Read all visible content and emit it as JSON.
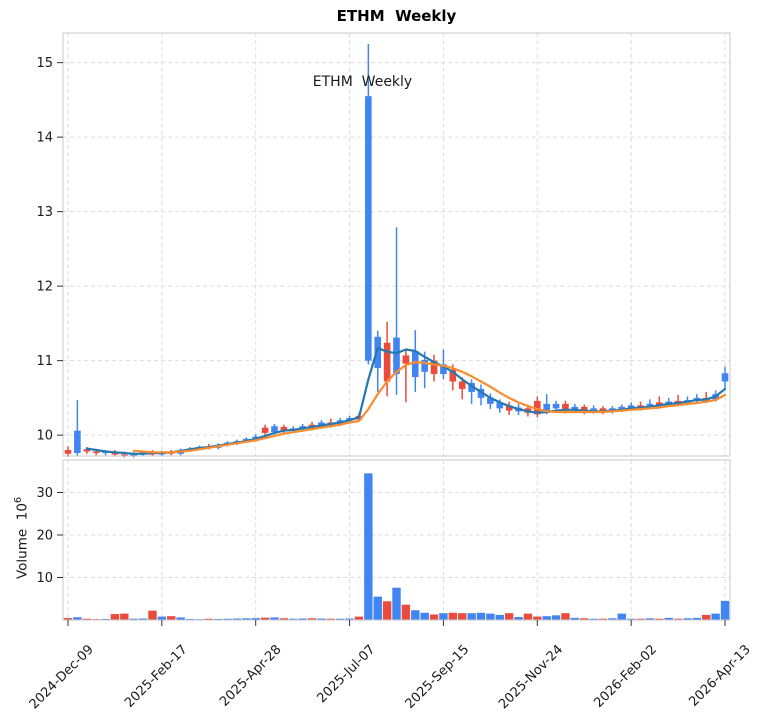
{
  "title": "ETHM  Weekly",
  "annotation": "ETHM  Weekly",
  "volume_axis_label": {
    "text": "Volume",
    "base": "10",
    "exponent": "6"
  },
  "colors": {
    "up_candle": "#4185f2",
    "down_candle": "#eb4b3d",
    "ma_fast": "#2479b0",
    "ma_slow": "#fb8c2d",
    "grid": "#dcdcdc",
    "spine": "#c9c9c9",
    "tick_text": "#1a1a1a"
  },
  "chart_data": {
    "type": "candlestick_with_volume",
    "title": "ETHM  Weekly",
    "x_tick_labels": [
      "2024-Dec-09",
      "2025-Feb-17",
      "2025-Apr-28",
      "2025-Jul-07",
      "2025-Sep-15",
      "2025-Nov-24",
      "2026-Feb-02",
      "2026-Apr-13"
    ],
    "x_tick_weeks": [
      0,
      10,
      20,
      30,
      40,
      50,
      60,
      70
    ],
    "price_ticks": [
      10,
      11,
      12,
      13,
      14,
      15
    ],
    "price_ylim": [
      9.72,
      15.4
    ],
    "volume_ticks": [
      10,
      20,
      30
    ],
    "volume_ylim": [
      0,
      37.6
    ],
    "volume_unit": "10^6",
    "grid": "dashed",
    "weeks_ohlcv": [
      [
        9.8,
        9.85,
        9.71,
        9.75,
        0.45
      ],
      [
        9.76,
        10.47,
        9.72,
        10.06,
        0.65
      ],
      [
        9.81,
        9.84,
        9.75,
        9.78,
        0.3
      ],
      [
        9.78,
        9.81,
        9.73,
        9.76,
        0.2
      ],
      [
        9.76,
        9.8,
        9.73,
        9.78,
        0.25
      ],
      [
        9.78,
        9.8,
        9.71,
        9.74,
        1.4
      ],
      [
        9.74,
        9.78,
        9.7,
        9.72,
        1.5
      ],
      [
        9.72,
        9.77,
        9.7,
        9.75,
        0.3
      ],
      [
        9.75,
        9.79,
        9.72,
        9.77,
        0.35
      ],
      [
        9.77,
        9.8,
        9.72,
        9.74,
        2.2
      ],
      [
        9.74,
        9.79,
        9.72,
        9.77,
        0.8
      ],
      [
        9.77,
        9.8,
        9.73,
        9.75,
        0.9
      ],
      [
        9.75,
        9.82,
        9.73,
        9.8,
        0.6
      ],
      [
        9.8,
        9.84,
        9.78,
        9.82,
        0.25
      ],
      [
        9.82,
        9.86,
        9.8,
        9.84,
        0.2
      ],
      [
        9.84,
        9.88,
        9.81,
        9.83,
        0.3
      ],
      [
        9.83,
        9.89,
        9.81,
        9.87,
        0.25
      ],
      [
        9.87,
        9.92,
        9.85,
        9.9,
        0.3
      ],
      [
        9.9,
        9.94,
        9.87,
        9.92,
        0.35
      ],
      [
        9.92,
        9.97,
        9.9,
        9.95,
        0.4
      ],
      [
        9.95,
        10.01,
        9.92,
        9.98,
        0.45
      ],
      [
        10.1,
        10.14,
        9.99,
        10.03,
        0.55
      ],
      [
        10.04,
        10.15,
        10.01,
        10.12,
        0.6
      ],
      [
        10.11,
        10.14,
        10.02,
        10.06,
        0.4
      ],
      [
        10.06,
        10.12,
        10.03,
        10.09,
        0.3
      ],
      [
        10.09,
        10.15,
        10.06,
        10.12,
        0.35
      ],
      [
        10.14,
        10.18,
        10.07,
        10.1,
        0.4
      ],
      [
        10.11,
        10.2,
        10.09,
        10.17,
        0.35
      ],
      [
        10.17,
        10.22,
        10.1,
        10.13,
        0.3
      ],
      [
        10.14,
        10.23,
        10.12,
        10.2,
        0.3
      ],
      [
        10.2,
        10.26,
        10.17,
        10.23,
        0.35
      ],
      [
        10.26,
        10.3,
        10.18,
        10.21,
        0.8
      ],
      [
        11.0,
        15.25,
        10.95,
        14.55,
        34.5
      ],
      [
        10.9,
        11.4,
        10.58,
        11.32,
        5.5
      ],
      [
        11.24,
        11.52,
        10.52,
        10.72,
        4.4
      ],
      [
        10.82,
        12.79,
        10.54,
        11.31,
        7.6
      ],
      [
        11.07,
        11.16,
        10.44,
        10.96,
        3.6
      ],
      [
        10.78,
        11.41,
        10.58,
        11.13,
        2.3
      ],
      [
        10.85,
        11.12,
        10.63,
        11.01,
        1.7
      ],
      [
        11.0,
        11.08,
        10.72,
        10.82,
        1.3
      ],
      [
        10.82,
        11.15,
        10.75,
        10.95,
        1.6
      ],
      [
        10.88,
        10.95,
        10.6,
        10.72,
        1.7
      ],
      [
        10.72,
        10.78,
        10.48,
        10.62,
        1.6
      ],
      [
        10.58,
        10.75,
        10.42,
        10.7,
        1.6
      ],
      [
        10.5,
        10.68,
        10.4,
        10.62,
        1.7
      ],
      [
        10.42,
        10.56,
        10.35,
        10.5,
        1.5
      ],
      [
        10.36,
        10.48,
        10.3,
        10.44,
        1.2
      ],
      [
        10.4,
        10.45,
        10.27,
        10.33,
        1.6
      ],
      [
        10.32,
        10.42,
        10.27,
        10.37,
        0.7
      ],
      [
        10.36,
        10.41,
        10.25,
        10.3,
        1.5
      ],
      [
        10.46,
        10.52,
        10.24,
        10.28,
        0.8
      ],
      [
        10.3,
        10.55,
        10.28,
        10.42,
        0.9
      ],
      [
        10.36,
        10.46,
        10.32,
        10.42,
        1.1
      ],
      [
        10.42,
        10.46,
        10.29,
        10.34,
        1.6
      ],
      [
        10.34,
        10.42,
        10.3,
        10.38,
        0.5
      ],
      [
        10.38,
        10.41,
        10.28,
        10.32,
        0.4
      ],
      [
        10.32,
        10.4,
        10.29,
        10.36,
        0.3
      ],
      [
        10.36,
        10.39,
        10.28,
        10.31,
        0.3
      ],
      [
        10.31,
        10.39,
        10.29,
        10.36,
        0.4
      ],
      [
        10.34,
        10.41,
        10.31,
        10.38,
        1.5
      ],
      [
        10.36,
        10.44,
        10.33,
        10.4,
        0.3
      ],
      [
        10.4,
        10.45,
        10.33,
        10.36,
        0.3
      ],
      [
        10.38,
        10.48,
        10.35,
        10.42,
        0.4
      ],
      [
        10.44,
        10.52,
        10.37,
        10.4,
        0.3
      ],
      [
        10.4,
        10.5,
        10.38,
        10.45,
        0.5
      ],
      [
        10.46,
        10.54,
        10.39,
        10.42,
        0.3
      ],
      [
        10.42,
        10.52,
        10.4,
        10.47,
        0.4
      ],
      [
        10.46,
        10.55,
        10.43,
        10.5,
        0.5
      ],
      [
        10.5,
        10.58,
        10.43,
        10.46,
        1.2
      ],
      [
        10.48,
        10.6,
        10.45,
        10.55,
        1.5
      ],
      [
        10.72,
        10.92,
        10.62,
        10.83,
        4.5
      ]
    ],
    "ma_fast": [
      null,
      null,
      9.82,
      9.8,
      9.78,
      9.77,
      9.76,
      9.75,
      9.75,
      9.76,
      9.76,
      9.77,
      9.79,
      9.81,
      9.83,
      9.84,
      9.86,
      9.88,
      9.9,
      9.92,
      9.95,
      9.99,
      10.03,
      10.06,
      10.07,
      10.09,
      10.11,
      10.13,
      10.15,
      10.17,
      10.2,
      10.24,
      10.75,
      11.17,
      11.12,
      11.1,
      11.15,
      11.13,
      11.05,
      10.98,
      10.92,
      10.85,
      10.75,
      10.66,
      10.58,
      10.5,
      10.44,
      10.39,
      10.35,
      10.32,
      10.3,
      10.31,
      10.33,
      10.34,
      10.34,
      10.33,
      10.32,
      10.32,
      10.33,
      10.34,
      10.36,
      10.37,
      10.38,
      10.4,
      10.42,
      10.43,
      10.45,
      10.47,
      10.48,
      10.52,
      10.62
    ],
    "ma_slow": [
      null,
      null,
      null,
      null,
      null,
      null,
      null,
      9.79,
      9.78,
      9.77,
      9.77,
      9.77,
      9.78,
      9.79,
      9.81,
      9.83,
      9.85,
      9.87,
      9.89,
      9.91,
      9.93,
      9.96,
      9.99,
      10.02,
      10.04,
      10.06,
      10.08,
      10.1,
      10.12,
      10.14,
      10.17,
      10.19,
      10.35,
      10.55,
      10.72,
      10.85,
      10.94,
      10.98,
      10.97,
      10.95,
      10.93,
      10.9,
      10.85,
      10.79,
      10.72,
      10.65,
      10.57,
      10.5,
      10.44,
      10.39,
      10.35,
      10.32,
      10.31,
      10.31,
      10.31,
      10.31,
      10.31,
      10.31,
      10.32,
      10.33,
      10.34,
      10.35,
      10.36,
      10.37,
      10.39,
      10.4,
      10.42,
      10.43,
      10.45,
      10.47,
      10.54
    ]
  }
}
